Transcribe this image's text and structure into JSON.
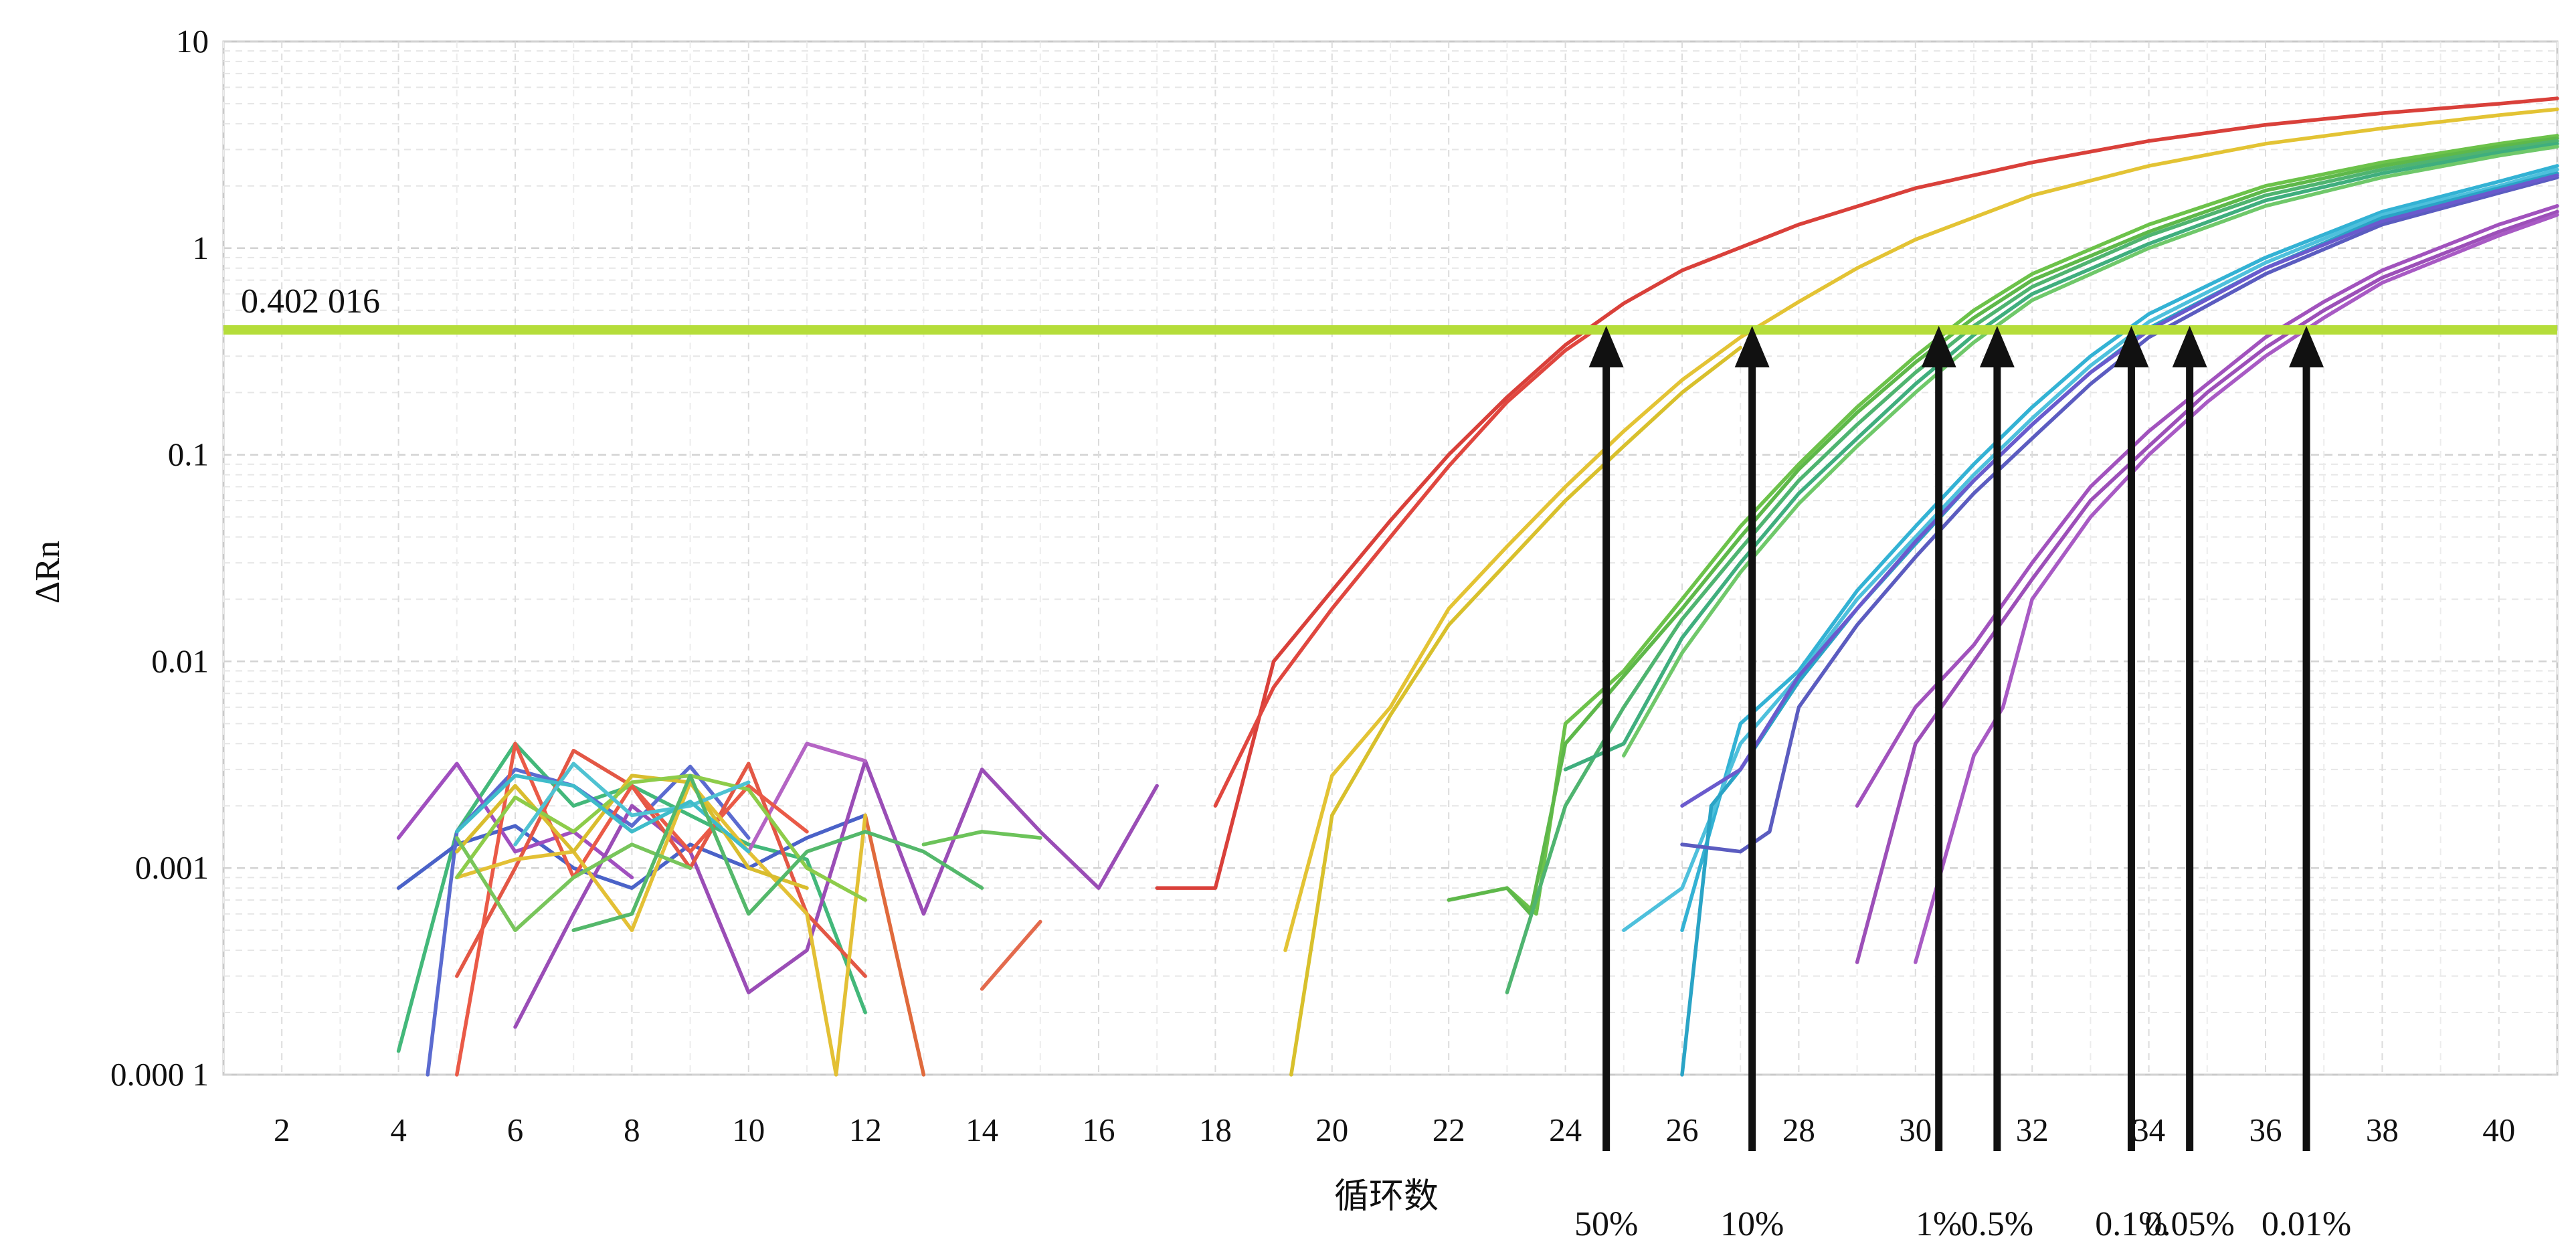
{
  "chart_data": {
    "type": "line",
    "xlabel": "循环数",
    "ylabel": "ΔRn",
    "xlim": [
      1,
      41
    ],
    "ylim": [
      0.0001,
      10
    ],
    "y_scale": "log",
    "grid": true,
    "x_ticks": [
      "2",
      "4",
      "6",
      "8",
      "10",
      "12",
      "14",
      "16",
      "18",
      "20",
      "22",
      "24",
      "26",
      "28",
      "30",
      "32",
      "34",
      "36",
      "38",
      "40"
    ],
    "y_ticks": [
      {
        "value": 10,
        "label": "10"
      },
      {
        "value": 1,
        "label": "1"
      },
      {
        "value": 0.1,
        "label": "0.1"
      },
      {
        "value": 0.01,
        "label": "0.01"
      },
      {
        "value": 0.001,
        "label": "0.001"
      },
      {
        "value": 0.0001,
        "label": "0.000 1"
      }
    ],
    "threshold": {
      "value": 0.402016,
      "label": "0.402 016",
      "color": "#b5dd3a"
    },
    "markers": [
      {
        "x": 24.7,
        "label": "50%"
      },
      {
        "x": 27.2,
        "label": "10%"
      },
      {
        "x": 30.4,
        "label": "1%"
      },
      {
        "x": 31.4,
        "label": "0.5%"
      },
      {
        "x": 33.7,
        "label": "0.1%"
      },
      {
        "x": 34.7,
        "label": "0.05%"
      },
      {
        "x": 36.7,
        "label": "0.01%"
      }
    ],
    "series": [
      {
        "color": "#d9403a",
        "x": [
          17,
          18,
          19,
          20,
          21,
          22,
          23,
          24,
          25,
          26,
          28,
          30,
          32,
          34,
          36,
          38,
          40,
          41
        ],
        "y": [
          0.0008,
          0.0008,
          0.01,
          0.022,
          0.048,
          0.1,
          0.19,
          0.34,
          0.54,
          0.78,
          1.3,
          1.95,
          2.6,
          3.3,
          3.95,
          4.5,
          5.0,
          5.3
        ]
      },
      {
        "color": "#e0473f",
        "x": [
          18,
          19,
          20,
          21,
          22,
          23,
          24,
          24.5
        ],
        "y": [
          0.002,
          0.0075,
          0.018,
          0.04,
          0.088,
          0.18,
          0.32,
          0.4
        ]
      },
      {
        "color": "#e3c334",
        "x": [
          19.2,
          20,
          21,
          22,
          23,
          24,
          25,
          26,
          27,
          28,
          29,
          30,
          32,
          34,
          36,
          38,
          40,
          41
        ],
        "y": [
          0.0004,
          0.0028,
          0.006,
          0.018,
          0.036,
          0.07,
          0.13,
          0.23,
          0.37,
          0.55,
          0.8,
          1.1,
          1.8,
          2.5,
          3.2,
          3.8,
          4.4,
          4.7
        ]
      },
      {
        "color": "#d8c02c",
        "x": [
          19.3,
          20,
          21,
          22,
          23,
          24,
          25,
          26,
          27
        ],
        "y": [
          0.0001,
          0.0018,
          0.0055,
          0.015,
          0.03,
          0.06,
          0.11,
          0.2,
          0.33
        ]
      },
      {
        "color": "#6cc24a",
        "x": [
          23,
          23.5,
          24,
          25,
          26,
          27,
          28,
          29,
          30,
          31,
          32,
          34,
          36,
          38,
          40,
          41
        ],
        "y": [
          0.0008,
          0.0006,
          0.005,
          0.009,
          0.02,
          0.045,
          0.09,
          0.17,
          0.3,
          0.5,
          0.75,
          1.3,
          2.0,
          2.6,
          3.2,
          3.5
        ]
      },
      {
        "color": "#5eb84a",
        "x": [
          22,
          23,
          23.4,
          24,
          25,
          26,
          27,
          28,
          29,
          30,
          31,
          32,
          34,
          36,
          38,
          40,
          41
        ],
        "y": [
          0.0007,
          0.0008,
          0.0006,
          0.004,
          0.0085,
          0.018,
          0.04,
          0.085,
          0.16,
          0.28,
          0.46,
          0.7,
          1.2,
          1.9,
          2.5,
          3.1,
          3.4
        ]
      },
      {
        "color": "#4fb470",
        "x": [
          23,
          24,
          25,
          26,
          27,
          28,
          29,
          30,
          31,
          32,
          34,
          36,
          38,
          40,
          41
        ],
        "y": [
          0.00025,
          0.002,
          0.006,
          0.016,
          0.035,
          0.075,
          0.14,
          0.25,
          0.42,
          0.65,
          1.15,
          1.8,
          2.4,
          3.0,
          3.3
        ]
      },
      {
        "color": "#3fae7e",
        "x": [
          24,
          25,
          26,
          27,
          28,
          29,
          30,
          31,
          32,
          34,
          36,
          38,
          40,
          41
        ],
        "y": [
          0.003,
          0.004,
          0.013,
          0.03,
          0.065,
          0.12,
          0.22,
          0.38,
          0.6,
          1.05,
          1.7,
          2.3,
          2.9,
          3.2
        ]
      },
      {
        "color": "#6fc86a",
        "x": [
          25,
          26,
          27,
          28,
          29,
          30,
          31,
          32,
          34,
          36,
          38,
          40,
          41
        ],
        "y": [
          0.0035,
          0.011,
          0.027,
          0.058,
          0.11,
          0.2,
          0.35,
          0.56,
          1.0,
          1.6,
          2.2,
          2.8,
          3.1
        ]
      },
      {
        "color": "#33b2d4",
        "x": [
          26,
          27,
          28,
          29,
          30,
          31,
          32,
          33,
          34,
          36,
          38,
          40,
          41
        ],
        "y": [
          0.0005,
          0.005,
          0.009,
          0.022,
          0.045,
          0.09,
          0.17,
          0.3,
          0.48,
          0.9,
          1.5,
          2.1,
          2.5
        ]
      },
      {
        "color": "#4ec0dc",
        "x": [
          25,
          26,
          27,
          28,
          29,
          30,
          31,
          32,
          33,
          34,
          36,
          38,
          40,
          41
        ],
        "y": [
          0.0005,
          0.0008,
          0.004,
          0.0085,
          0.02,
          0.04,
          0.08,
          0.15,
          0.27,
          0.44,
          0.85,
          1.45,
          2.0,
          2.4
        ]
      },
      {
        "color": "#2aa4c6",
        "x": [
          26,
          26.5,
          27,
          28,
          29,
          30,
          31,
          32,
          33,
          34,
          36,
          38,
          40,
          41
        ],
        "y": [
          0.0001,
          0.002,
          0.003,
          0.008,
          0.018,
          0.037,
          0.075,
          0.14,
          0.25,
          0.41,
          0.8,
          1.4,
          1.95,
          2.3
        ]
      },
      {
        "color": "#5b5cc0",
        "x": [
          26,
          27,
          27.5,
          28,
          29,
          30,
          31,
          32,
          33,
          34,
          36,
          38,
          40,
          41
        ],
        "y": [
          0.0013,
          0.0012,
          0.0015,
          0.006,
          0.015,
          0.032,
          0.065,
          0.12,
          0.22,
          0.37,
          0.75,
          1.3,
          1.85,
          2.2
        ]
      },
      {
        "color": "#6a5acd",
        "x": [
          26,
          27,
          28,
          29,
          30,
          31,
          32,
          33,
          34,
          36,
          38,
          40,
          41
        ],
        "y": [
          0.002,
          0.003,
          0.0085,
          0.018,
          0.038,
          0.075,
          0.14,
          0.25,
          0.4,
          0.8,
          1.35,
          1.9,
          2.25
        ]
      },
      {
        "color": "#a152bd",
        "x": [
          29,
          30,
          31,
          32,
          33,
          34,
          35,
          36,
          37,
          38,
          40,
          41
        ],
        "y": [
          0.002,
          0.006,
          0.012,
          0.03,
          0.07,
          0.13,
          0.22,
          0.37,
          0.55,
          0.78,
          1.3,
          1.6
        ]
      },
      {
        "color": "#9c4fb8",
        "x": [
          29,
          30,
          31,
          32,
          33,
          34,
          35,
          36,
          37,
          38,
          40,
          41
        ],
        "y": [
          0.00035,
          0.004,
          0.01,
          0.025,
          0.06,
          0.11,
          0.2,
          0.33,
          0.5,
          0.72,
          1.2,
          1.5
        ]
      },
      {
        "color": "#a85ac4",
        "x": [
          30,
          31,
          31.5,
          32,
          33,
          34,
          35,
          36,
          37,
          38,
          40,
          41
        ],
        "y": [
          0.00035,
          0.0035,
          0.006,
          0.02,
          0.05,
          0.1,
          0.18,
          0.3,
          0.46,
          0.68,
          1.15,
          1.45
        ]
      },
      {
        "color": "#43b87a",
        "x": [
          4,
          5,
          6,
          7,
          8,
          9,
          10,
          11,
          12
        ],
        "y": [
          0.00013,
          0.0015,
          0.004,
          0.002,
          0.0025,
          0.0018,
          0.0013,
          0.0011,
          0.0002
        ]
      },
      {
        "color": "#4a62c8",
        "x": [
          4,
          5,
          6,
          7,
          8,
          9,
          10,
          11,
          12
        ],
        "y": [
          0.0008,
          0.0013,
          0.0016,
          0.001,
          0.0008,
          0.0013,
          0.001,
          0.0014,
          0.0018
        ]
      },
      {
        "color": "#5b6bd0",
        "x": [
          4.5,
          5,
          6,
          7,
          8,
          9,
          10
        ],
        "y": [
          0.0001,
          0.0015,
          0.003,
          0.0025,
          0.0016,
          0.0031,
          0.0014
        ]
      },
      {
        "color": "#a04fbf",
        "x": [
          4,
          5,
          6,
          7,
          8
        ],
        "y": [
          0.0014,
          0.0032,
          0.0012,
          0.0015,
          0.0009
        ]
      },
      {
        "color": "#9a4db6",
        "x": [
          6,
          7,
          8,
          9,
          10,
          11,
          12,
          13,
          14,
          15,
          16,
          17
        ],
        "y": [
          0.00017,
          0.0006,
          0.002,
          0.0012,
          0.00025,
          0.0004,
          0.0033,
          0.0006,
          0.003,
          0.0015,
          0.0008,
          0.0025
        ]
      },
      {
        "color": "#b464c4",
        "x": [
          10,
          11,
          12
        ],
        "y": [
          0.0012,
          0.004,
          0.0033
        ]
      },
      {
        "color": "#e35745",
        "x": [
          5,
          6,
          7,
          8,
          9,
          10,
          11,
          12
        ],
        "y": [
          0.0003,
          0.001,
          0.0037,
          0.0025,
          0.001,
          0.0032,
          0.0006,
          0.0003
        ]
      },
      {
        "color": "#e06a3c",
        "x": [
          12,
          13
        ],
        "y": [
          0.0018,
          0.0001
        ]
      },
      {
        "color": "#ea5a47",
        "x": [
          5,
          6,
          7,
          8,
          9,
          10,
          11
        ],
        "y": [
          0.0001,
          0.004,
          0.0009,
          0.0025,
          0.0012,
          0.0025,
          0.0015
        ]
      },
      {
        "color": "#e3c035",
        "x": [
          5,
          6,
          7,
          8,
          9,
          10,
          11,
          11.5,
          12
        ],
        "y": [
          0.0009,
          0.0011,
          0.0012,
          0.0005,
          0.0026,
          0.0012,
          0.0006,
          0.0001,
          0.0018
        ]
      },
      {
        "color": "#d9bd2e",
        "x": [
          5,
          6,
          7,
          8,
          9,
          10,
          11
        ],
        "y": [
          0.0012,
          0.0025,
          0.0012,
          0.0028,
          0.0026,
          0.001,
          0.0008
        ]
      },
      {
        "color": "#8dcc4a",
        "x": [
          5,
          6,
          7,
          8,
          9,
          10,
          11,
          12
        ],
        "y": [
          0.0009,
          0.0022,
          0.0015,
          0.0026,
          0.0028,
          0.0024,
          0.001,
          0.0007
        ]
      },
      {
        "color": "#4fc2d2",
        "x": [
          6,
          7,
          8,
          9,
          10
        ],
        "y": [
          0.0013,
          0.0032,
          0.0018,
          0.002,
          0.0026
        ]
      },
      {
        "color": "#3fbcca",
        "x": [
          5,
          6,
          7,
          8,
          9,
          10
        ],
        "y": [
          0.0015,
          0.0028,
          0.0025,
          0.0015,
          0.0021,
          0.0012
        ]
      },
      {
        "color": "#78c55b",
        "x": [
          5,
          6,
          7,
          8,
          9
        ],
        "y": [
          0.0014,
          0.0005,
          0.0009,
          0.0013,
          0.001
        ]
      },
      {
        "color": "#54b86b",
        "x": [
          7,
          8,
          9,
          10,
          11,
          12,
          13,
          14
        ],
        "y": [
          0.0005,
          0.0006,
          0.0028,
          0.0006,
          0.0012,
          0.0015,
          0.0012,
          0.0008
        ]
      },
      {
        "color": "#6cc35a",
        "x": [
          13,
          14,
          15
        ],
        "y": [
          0.0013,
          0.0015,
          0.0014
        ]
      },
      {
        "color": "#e36a4d",
        "x": [
          14,
          15
        ],
        "y": [
          0.00026,
          0.00055
        ]
      }
    ]
  }
}
